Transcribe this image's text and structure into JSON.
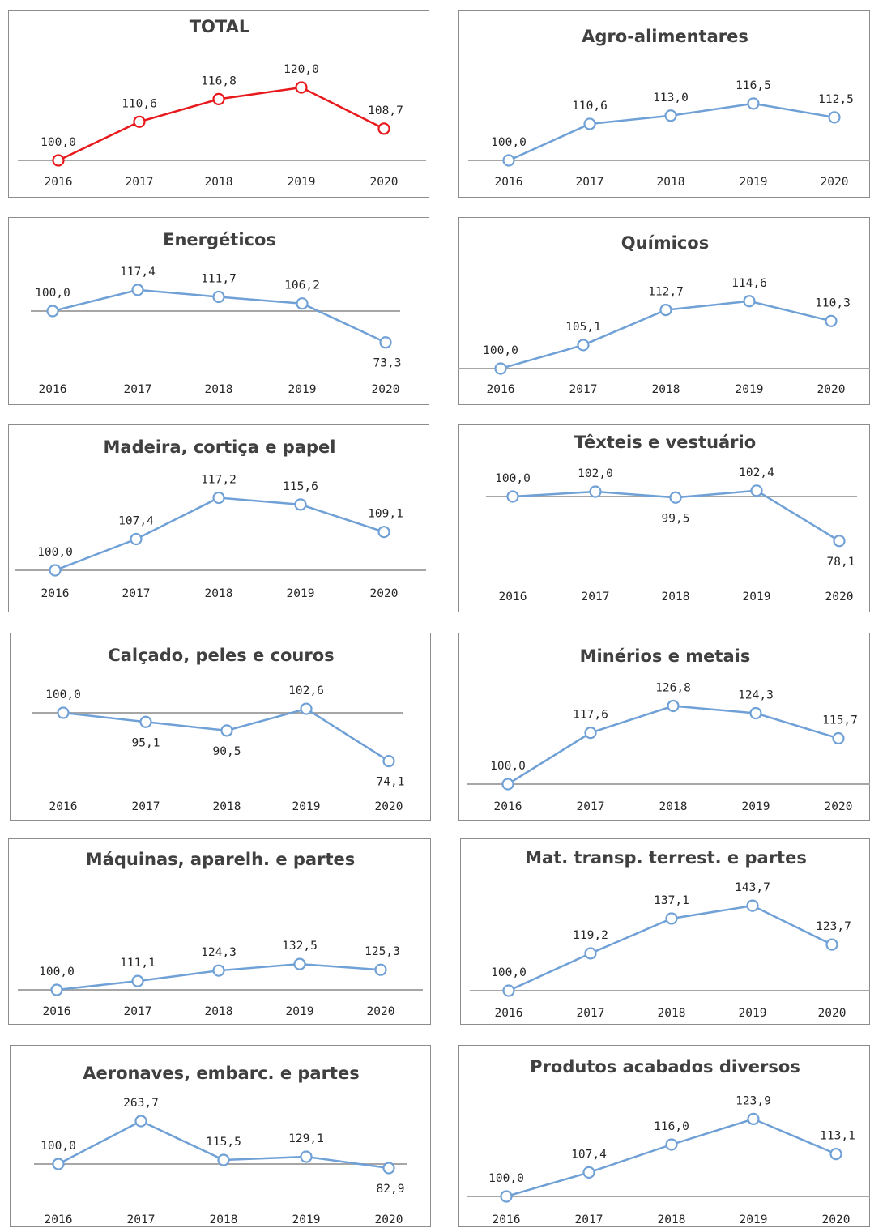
{
  "chart_data": [
    {
      "type": "line",
      "title": "TOTAL",
      "categories": [
        "2016",
        "2017",
        "2018",
        "2019",
        "2020"
      ],
      "series": [
        {
          "values": [
            100.0,
            110.6,
            116.8,
            120.0,
            108.7
          ]
        }
      ],
      "value_labels": [
        "100,0",
        "110,6",
        "116,8",
        "120,0",
        "108,7"
      ],
      "color": "#e8191c"
    },
    {
      "type": "line",
      "title": "Agro-alimentares",
      "categories": [
        "2016",
        "2017",
        "2018",
        "2019",
        "2020"
      ],
      "series": [
        {
          "values": [
            100.0,
            110.6,
            113.0,
            116.5,
            112.5
          ]
        }
      ],
      "value_labels": [
        "100,0",
        "110,6",
        "113,0",
        "116,5",
        "112,5"
      ],
      "color": "#6fa0d6"
    },
    {
      "type": "line",
      "title": "Energéticos",
      "categories": [
        "2016",
        "2017",
        "2018",
        "2019",
        "2020"
      ],
      "series": [
        {
          "values": [
            100.0,
            117.4,
            111.7,
            106.2,
            73.3
          ]
        }
      ],
      "value_labels": [
        "100,0",
        "117,4",
        "111,7",
        "106,2",
        "73,3"
      ],
      "color": "#6fa0d6"
    },
    {
      "type": "line",
      "title": "Químicos",
      "categories": [
        "2016",
        "2017",
        "2018",
        "2019",
        "2020"
      ],
      "series": [
        {
          "values": [
            100.0,
            105.1,
            112.7,
            114.6,
            110.3
          ]
        }
      ],
      "value_labels": [
        "100,0",
        "105,1",
        "112,7",
        "114,6",
        "110,3"
      ],
      "color": "#6fa0d6"
    },
    {
      "type": "line",
      "title": "Madeira, cortiça e papel",
      "categories": [
        "2016",
        "2017",
        "2018",
        "2019",
        "2020"
      ],
      "series": [
        {
          "values": [
            100.0,
            107.4,
            117.2,
            115.6,
            109.1
          ]
        }
      ],
      "value_labels": [
        "100,0",
        "107,4",
        "117,2",
        "115,6",
        "109,1"
      ],
      "color": "#6fa0d6"
    },
    {
      "type": "line",
      "title": "Têxteis e vestuário",
      "categories": [
        "2016",
        "2017",
        "2018",
        "2019",
        "2020"
      ],
      "series": [
        {
          "values": [
            100.0,
            102.0,
            99.5,
            102.4,
            78.1
          ]
        }
      ],
      "value_labels": [
        "100,0",
        "102,0",
        "99,5",
        "102,4",
        "78,1"
      ],
      "color": "#6fa0d6"
    },
    {
      "type": "line",
      "title": "Calçado, peles e couros",
      "categories": [
        "2016",
        "2017",
        "2018",
        "2019",
        "2020"
      ],
      "series": [
        {
          "values": [
            100.0,
            95.1,
            90.5,
            102.6,
            74.1
          ]
        }
      ],
      "value_labels": [
        "100,0",
        "95,1",
        "90,5",
        "102,6",
        "74,1"
      ],
      "color": "#6fa0d6"
    },
    {
      "type": "line",
      "title": "Minérios e metais",
      "categories": [
        "2016",
        "2017",
        "2018",
        "2019",
        "2020"
      ],
      "series": [
        {
          "values": [
            100.0,
            117.6,
            126.8,
            124.3,
            115.7
          ]
        }
      ],
      "value_labels": [
        "100,0",
        "117,6",
        "126,8",
        "124,3",
        "115,7"
      ],
      "color": "#6fa0d6"
    },
    {
      "type": "line",
      "title": "Máquinas, aparelh. e partes",
      "categories": [
        "2016",
        "2017",
        "2018",
        "2019",
        "2020"
      ],
      "series": [
        {
          "values": [
            100.0,
            111.1,
            124.3,
            132.5,
            125.3
          ]
        }
      ],
      "value_labels": [
        "100,0",
        "111,1",
        "124,3",
        "132,5",
        "125,3"
      ],
      "color": "#6fa0d6"
    },
    {
      "type": "line",
      "title": "Mat. transp. terrest. e partes",
      "categories": [
        "2016",
        "2017",
        "2018",
        "2019",
        "2020"
      ],
      "series": [
        {
          "values": [
            100.0,
            119.2,
            137.1,
            143.7,
            123.7
          ]
        }
      ],
      "value_labels": [
        "100,0",
        "119,2",
        "137,1",
        "143,7",
        "123,7"
      ],
      "color": "#6fa0d6"
    },
    {
      "type": "line",
      "title": "Aeronaves, embarc. e partes",
      "categories": [
        "2016",
        "2017",
        "2018",
        "2019",
        "2020"
      ],
      "series": [
        {
          "values": [
            100.0,
            263.7,
            115.5,
            129.1,
            82.9
          ]
        }
      ],
      "value_labels": [
        "100,0",
        "263,7",
        "115,5",
        "129,1",
        "82,9"
      ],
      "color": "#6fa0d6"
    },
    {
      "type": "line",
      "title": "Produtos acabados diversos",
      "categories": [
        "2016",
        "2017",
        "2018",
        "2019",
        "2020"
      ],
      "series": [
        {
          "values": [
            100.0,
            107.4,
            116.0,
            123.9,
            113.1
          ]
        }
      ],
      "value_labels": [
        "100,0",
        "107,4",
        "116,0",
        "123,9",
        "113,1"
      ],
      "color": "#6fa0d6"
    }
  ]
}
